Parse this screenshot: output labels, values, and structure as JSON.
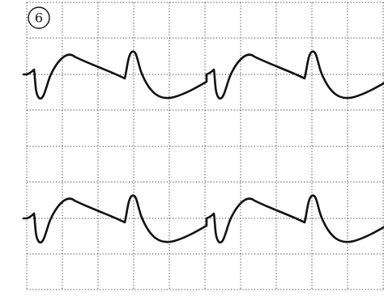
{
  "figure": {
    "label": "6",
    "colors": {
      "background": "#ffffff",
      "grid": "#3a3a3a",
      "trace": "#111111"
    }
  }
}
